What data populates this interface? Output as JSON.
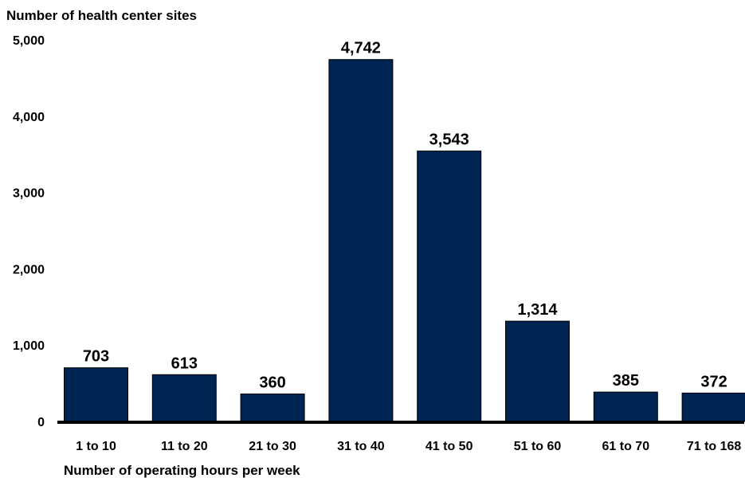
{
  "chart_data": {
    "type": "bar",
    "title": "",
    "ylabel": "Number of health center sites",
    "xlabel": "Number of operating hours per week",
    "categories": [
      "1 to 10",
      "11 to 20",
      "21 to 30",
      "31 to 40",
      "41 to 50",
      "51 to 60",
      "61 to 70",
      "71 to 168"
    ],
    "values": [
      703,
      613,
      360,
      4742,
      3543,
      1314,
      385,
      372
    ],
    "data_labels": [
      "703",
      "613",
      "360",
      "4,742",
      "3,543",
      "1,314",
      "385",
      "372"
    ],
    "ylim": [
      0,
      5000
    ],
    "yticks": [
      0,
      1000,
      2000,
      3000,
      4000,
      5000
    ],
    "ytick_labels": [
      "0",
      "1,000",
      "2,000",
      "3,000",
      "4,000",
      "5,000"
    ],
    "grid": false,
    "legend": "none",
    "colors": {
      "bar_fill": "#002451",
      "bar_stroke": "#000000",
      "axis": "#000000",
      "text": "#000000"
    }
  }
}
